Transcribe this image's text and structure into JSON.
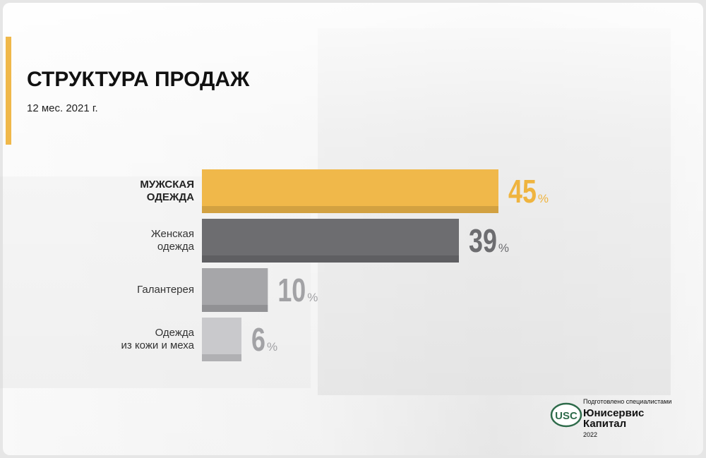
{
  "title": "СТРУКТУРА ПРОДАЖ",
  "subtitle": "12 мес. 2021 г.",
  "chart_data": {
    "type": "bar",
    "orientation": "horizontal",
    "categories": [
      "МУЖСКАЯ\nОДЕЖДА",
      "Женская\nодежда",
      "Галантерея",
      "Одежда\nиз кожи и меха"
    ],
    "values": [
      45,
      39,
      10,
      6
    ],
    "unit": "%",
    "colors": [
      "#f0b84a",
      "#6d6d70",
      "#a6a6a9",
      "#c9c9cc"
    ],
    "label_colors": [
      "#efb43f",
      "#6d6d70",
      "#a2a2a5",
      "#a2a2a5"
    ]
  },
  "footer": {
    "prepared": "Подготовлено специалистами",
    "logo": "USC",
    "company_line1": "Юнисервис",
    "company_line2": "Капитал",
    "year": "2022"
  }
}
